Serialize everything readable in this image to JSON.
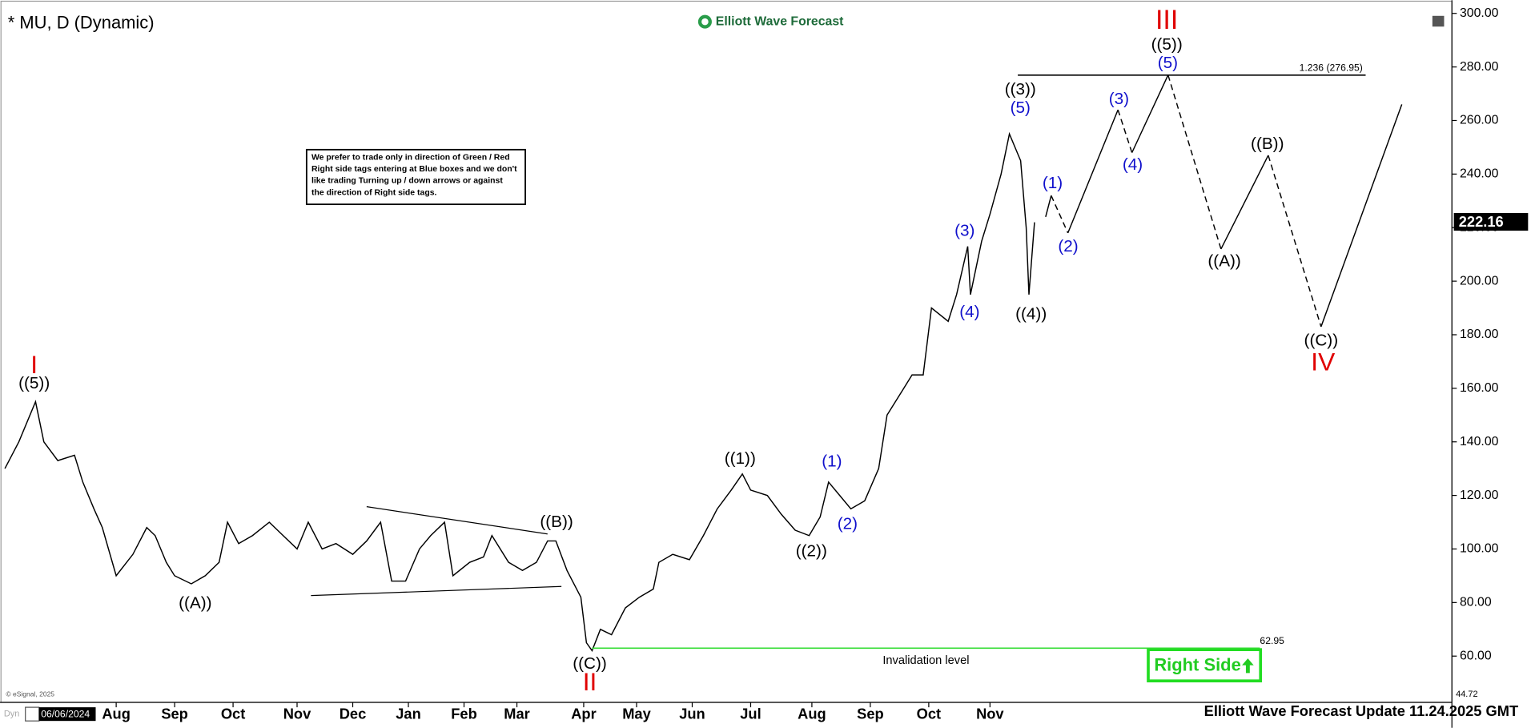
{
  "title": "* MU, D (Dynamic)",
  "logo": "Elliott Wave Forecast",
  "note": {
    "lines": [
      "We prefer to trade only in direction of Green / Red",
      "Right side tags entering at Blue boxes and we don't",
      "like trading Turning up / down arrows or against",
      "the direction of Right side tags."
    ]
  },
  "footer": "Elliott Wave Forecast Update 11.24.2025 GMT",
  "copyright": "© eSignal, 2025",
  "corner": "Dyn",
  "right_side": "Right Side",
  "chart_data": {
    "type": "line",
    "start_date": "06/06/2024",
    "xlim": [
      0,
      520
    ],
    "xticks": [
      {
        "value": 40,
        "label": "Aug"
      },
      {
        "value": 61,
        "label": "Sep"
      },
      {
        "value": 82,
        "label": "Oct"
      },
      {
        "value": 105,
        "label": "Nov"
      },
      {
        "value": 125,
        "label": "Dec"
      },
      {
        "value": 145,
        "label": "Jan"
      },
      {
        "value": 165,
        "label": "Feb"
      },
      {
        "value": 184,
        "label": "Mar"
      },
      {
        "value": 208,
        "label": "Apr"
      },
      {
        "value": 227,
        "label": "May"
      },
      {
        "value": 247,
        "label": "Jun"
      },
      {
        "value": 268,
        "label": "Jul"
      },
      {
        "value": 290,
        "label": "Aug"
      },
      {
        "value": 311,
        "label": "Sep"
      },
      {
        "value": 332,
        "label": "Oct"
      },
      {
        "value": 354,
        "label": "Nov"
      }
    ],
    "ylim": [
      44.72,
      302
    ],
    "yticks": [
      {
        "value": 60,
        "label": "60.00"
      },
      {
        "value": 80,
        "label": "80.00"
      },
      {
        "value": 100,
        "label": "100.00"
      },
      {
        "value": 120,
        "label": "120.00"
      },
      {
        "value": 140,
        "label": "140.00"
      },
      {
        "value": 160,
        "label": "160.00"
      },
      {
        "value": 180,
        "label": "180.00"
      },
      {
        "value": 200,
        "label": "200.00"
      },
      {
        "value": 220,
        "label": "220.00"
      },
      {
        "value": 240,
        "label": "240.00"
      },
      {
        "value": 260,
        "label": "260.00"
      },
      {
        "value": 280,
        "label": "280.00"
      },
      {
        "value": 300,
        "label": "300.00"
      }
    ],
    "last_price": 222.16,
    "series": [
      {
        "color": "#000000",
        "style": "solid",
        "x": [
          0,
          5,
          11,
          14,
          19,
          25,
          28,
          32,
          35,
          40,
          46,
          51,
          54,
          58,
          61,
          67,
          72,
          77,
          80,
          84,
          89,
          95,
          100,
          105,
          109,
          114,
          119,
          125,
          130,
          135,
          139,
          144,
          149,
          153,
          158,
          161,
          167,
          172,
          175,
          181,
          186,
          191,
          195,
          198,
          202,
          207,
          209,
          211,
          214,
          218,
          223,
          228,
          233,
          235,
          240,
          246,
          251,
          256,
          261,
          265,
          268,
          274,
          279,
          284,
          289,
          293,
          296,
          300,
          304,
          309,
          314,
          317,
          323,
          326,
          330,
          333,
          339,
          342,
          346,
          347,
          351,
          354,
          358,
          361,
          365,
          367,
          368,
          370
        ],
        "values": [
          130,
          140,
          155,
          140,
          133,
          135,
          125,
          115,
          108,
          90,
          98,
          108,
          105,
          95,
          90,
          87,
          90,
          95,
          110,
          102,
          105,
          110,
          105,
          100,
          110,
          100,
          102,
          98,
          103,
          110,
          88,
          88,
          100,
          105,
          110,
          90,
          95,
          97,
          105,
          95,
          92,
          95,
          103,
          103,
          92,
          82,
          65,
          62,
          70,
          68,
          78,
          82,
          85,
          95,
          98,
          96,
          105,
          115,
          122,
          128,
          122,
          120,
          113,
          107,
          105,
          112,
          125,
          120,
          115,
          118,
          130,
          150,
          160,
          165,
          165,
          190,
          185,
          195,
          213,
          195,
          215,
          225,
          240,
          255,
          245,
          220,
          195,
          222
        ]
      },
      {
        "color": "#000000",
        "style": "solid",
        "x": [
          374,
          376,
          null,
          382,
          400,
          null,
          405,
          418,
          null,
          437,
          454,
          null,
          473,
          502
        ],
        "values": [
          224,
          232,
          null,
          218,
          264,
          null,
          248,
          277,
          null,
          212,
          247,
          null,
          183,
          266
        ]
      },
      {
        "color": "#000000",
        "style": "dashed",
        "x": [
          376,
          382,
          null,
          400,
          405,
          null,
          418,
          437,
          null,
          454,
          473
        ],
        "values": [
          232,
          218,
          null,
          264,
          248,
          null,
          277,
          212,
          null,
          247,
          183
        ]
      }
    ],
    "trendlines": [
      {
        "x": [
          130,
          195
        ],
        "values": [
          115.8,
          105.6
        ]
      },
      {
        "x": [
          110,
          200
        ],
        "values": [
          82.6,
          86
        ]
      }
    ],
    "levels": [
      {
        "value": 276.95,
        "x": [
          364,
          489
        ],
        "label": "1.236 (276.95)",
        "color": "#000000"
      },
      {
        "value": 62.95,
        "x": [
          211,
          451
        ],
        "label": "62.95",
        "text": "Invalidation level",
        "color": "#33dd33"
      }
    ],
    "annotations": [
      {
        "text": "I",
        "color": "#e00000"
      },
      {
        "text": "((5))",
        "color": "#000000"
      },
      {
        "text": "((A))",
        "color": "#000000"
      },
      {
        "text": "((B))",
        "color": "#000000"
      },
      {
        "text": "((C))",
        "color": "#000000"
      },
      {
        "text": "II",
        "color": "#e00000"
      },
      {
        "text": "((1))",
        "color": "#000000"
      },
      {
        "text": "((2))",
        "color": "#000000"
      },
      {
        "text": "(1)",
        "color": "#1010cc"
      },
      {
        "text": "(2)",
        "color": "#1010cc"
      },
      {
        "text": "(3)",
        "color": "#1010cc"
      },
      {
        "text": "(4)",
        "color": "#1010cc"
      },
      {
        "text": "(5)",
        "color": "#1010cc"
      },
      {
        "text": "((3))",
        "color": "#000000"
      },
      {
        "text": "((4))",
        "color": "#000000"
      },
      {
        "text": "(1)",
        "color": "#1010cc"
      },
      {
        "text": "(2)",
        "color": "#1010cc"
      },
      {
        "text": "(3)",
        "color": "#1010cc"
      },
      {
        "text": "(4)",
        "color": "#1010cc"
      },
      {
        "text": "(5)",
        "color": "#1010cc"
      },
      {
        "text": "((5))",
        "color": "#000000"
      },
      {
        "text": "III",
        "color": "#e00000"
      },
      {
        "text": "((A))",
        "color": "#000000"
      },
      {
        "text": "((B))",
        "color": "#000000"
      },
      {
        "text": "((C))",
        "color": "#000000"
      },
      {
        "text": "IV",
        "color": "#e00000"
      }
    ]
  }
}
